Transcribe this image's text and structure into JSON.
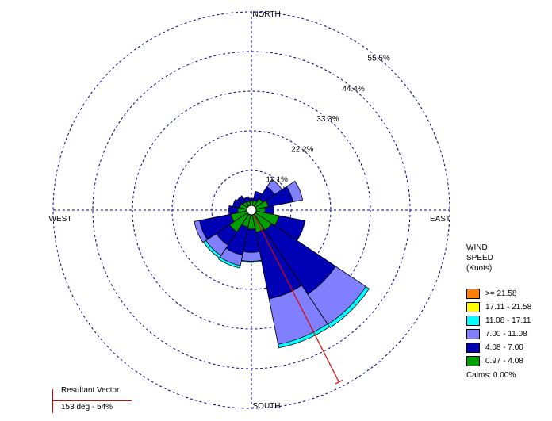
{
  "chart_data": {
    "type": "windrose",
    "directions": {
      "north": "NORTH",
      "south": "SOUTH",
      "east": "EAST",
      "west": "WEST"
    },
    "rings": [
      "11.1%",
      "22.2%",
      "33.3%",
      "44.4%",
      "55.5%"
    ],
    "ring_values": [
      11.1,
      22.2,
      33.3,
      44.4,
      55.5
    ],
    "speed_bins": [
      ">= 21.58",
      "17.11 - 21.58",
      "11.08 - 17.11",
      "7.00 - 11.08",
      "4.08 - 7.00",
      "0.97 - 4.08"
    ],
    "colors": {
      ">= 21.58": "#ff8000",
      "17.11 - 21.58": "#ffff00",
      "11.08 - 17.11": "#00ffff",
      "7.00 - 11.08": "#8080ff",
      "4.08 - 7.00": "#0000b4",
      "0.97 - 4.08": "#00a000"
    },
    "sectors": [
      {
        "direction_deg": 0,
        "cumulative_percent": [
          1.2,
          2.0
        ]
      },
      {
        "direction_deg": 22.5,
        "cumulative_percent": [
          1.5,
          4.0
        ]
      },
      {
        "direction_deg": 45,
        "cumulative_percent": [
          2.5,
          6.5,
          9.0
        ]
      },
      {
        "direction_deg": 67.5,
        "cumulative_percent": [
          3.5,
          10.5,
          13.3
        ]
      },
      {
        "direction_deg": 90,
        "cumulative_percent": [
          2.5,
          5.0
        ]
      },
      {
        "direction_deg": 112.5,
        "cumulative_percent": [
          6.5,
          14.0
        ]
      },
      {
        "direction_deg": 135,
        "cumulative_percent": [
          5.5,
          27.0,
          37.2,
          38.3
        ]
      },
      {
        "direction_deg": 157.5,
        "cumulative_percent": [
          5.0,
          24.0,
          37.0,
          38.0
        ]
      },
      {
        "direction_deg": 180,
        "cumulative_percent": [
          4.0,
          10.5,
          13.0,
          13.3
        ]
      },
      {
        "direction_deg": 202.5,
        "cumulative_percent": [
          3.5,
          11.5,
          14.5,
          15.2
        ]
      },
      {
        "direction_deg": 225,
        "cumulative_percent": [
          6.0,
          10.5,
          14.0,
          14.8
        ]
      },
      {
        "direction_deg": 247.5,
        "cumulative_percent": [
          4.5,
          13.5,
          15.0
        ]
      },
      {
        "direction_deg": 270,
        "cumulative_percent": [
          2.5,
          5.0
        ]
      },
      {
        "direction_deg": 292.5,
        "cumulative_percent": [
          2.0,
          4.0
        ]
      },
      {
        "direction_deg": 315,
        "cumulative_percent": [
          1.5,
          3.5
        ]
      },
      {
        "direction_deg": 337.5,
        "cumulative_percent": [
          1.2,
          2.5
        ]
      }
    ],
    "resultant": {
      "direction_deg": 153,
      "percent": 54
    },
    "calms": "Calms: 0.00%",
    "grid": true
  },
  "legend": {
    "title": "WIND SPEED (Knots)",
    "items": [
      {
        "label": ">= 21.58",
        "color": "#ff8000"
      },
      {
        "label": "17.11 - 21.58",
        "color": "#ffff00"
      },
      {
        "label": "11.08 - 17.11",
        "color": "#00ffff"
      },
      {
        "label": "7.00 - 11.08",
        "color": "#8080ff"
      },
      {
        "label": "4.08 - 7.00",
        "color": "#0000b4"
      },
      {
        "label": "0.97 - 4.08",
        "color": "#00a000"
      }
    ],
    "calms": "Calms: 0.00%"
  },
  "resultant_label": {
    "title": "Resultant Vector",
    "value": "153 deg - 54%"
  }
}
